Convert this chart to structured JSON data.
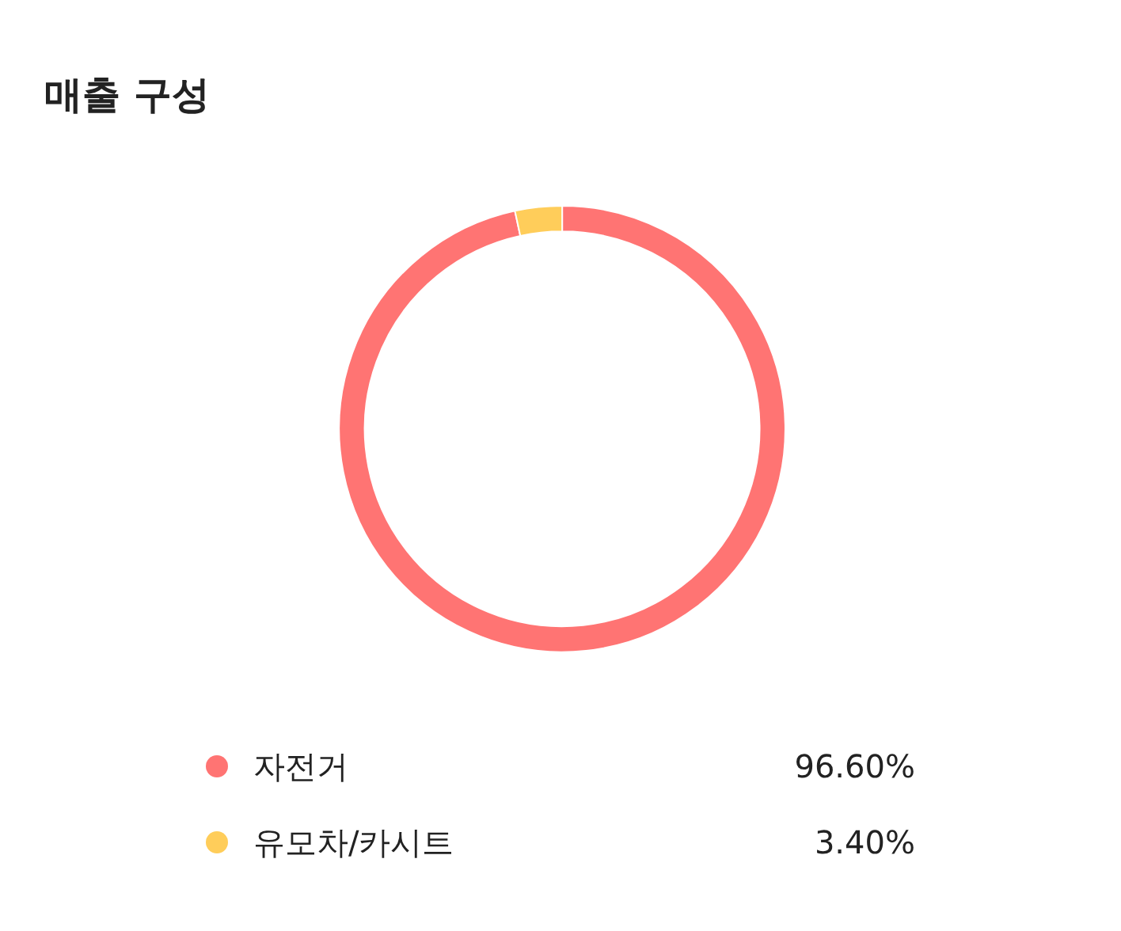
{
  "chart_data": {
    "type": "donut",
    "title": "매출 구성",
    "categories": [
      "자전거",
      "유모차/카시트"
    ],
    "values": [
      96.6,
      3.4
    ],
    "value_labels": [
      "96.60%",
      "3.40%"
    ],
    "colors": [
      "#ff7473",
      "#ffcd5a"
    ],
    "legend": "bottom"
  }
}
